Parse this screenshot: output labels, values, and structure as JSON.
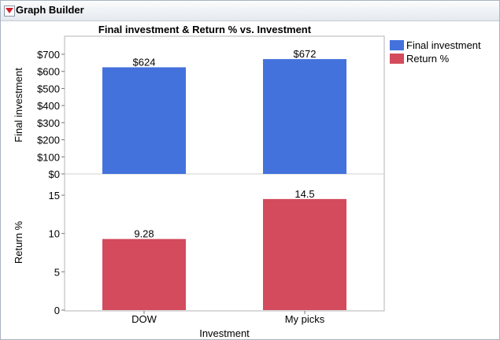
{
  "window": {
    "title": "Graph Builder"
  },
  "icons": {
    "disclosure": "red-down-triangle-icon"
  },
  "colors": {
    "final": "#4472dc",
    "ret": "#d34b5c"
  },
  "legend": {
    "items": [
      "Final investment",
      "Return %"
    ]
  },
  "chart_data": {
    "type": "bar",
    "title": "Final investment & Return % vs. Investment",
    "xlabel": "Investment",
    "categories": [
      "DOW",
      "My picks"
    ],
    "panels": [
      {
        "ylabel": "Final investment",
        "ylim": [
          0,
          700
        ],
        "yticks": [
          0,
          100,
          200,
          300,
          400,
          500,
          600,
          700
        ],
        "ytick_labels": [
          "$0",
          "$100",
          "$200",
          "$300",
          "$400",
          "$500",
          "$600",
          "$700"
        ],
        "series": [
          {
            "name": "Final investment",
            "values": [
              624,
              672
            ],
            "labels": [
              "$624",
              "$672"
            ]
          }
        ]
      },
      {
        "ylabel": "Return %",
        "ylim": [
          0,
          17
        ],
        "yticks": [
          0,
          5,
          10,
          15
        ],
        "ytick_labels": [
          "0",
          "5",
          "10",
          "15"
        ],
        "series": [
          {
            "name": "Return %",
            "values": [
              9.28,
              14.5
            ],
            "labels": [
              "9.28",
              "14.5"
            ]
          }
        ]
      }
    ],
    "grid": false,
    "legend_position": "right"
  }
}
